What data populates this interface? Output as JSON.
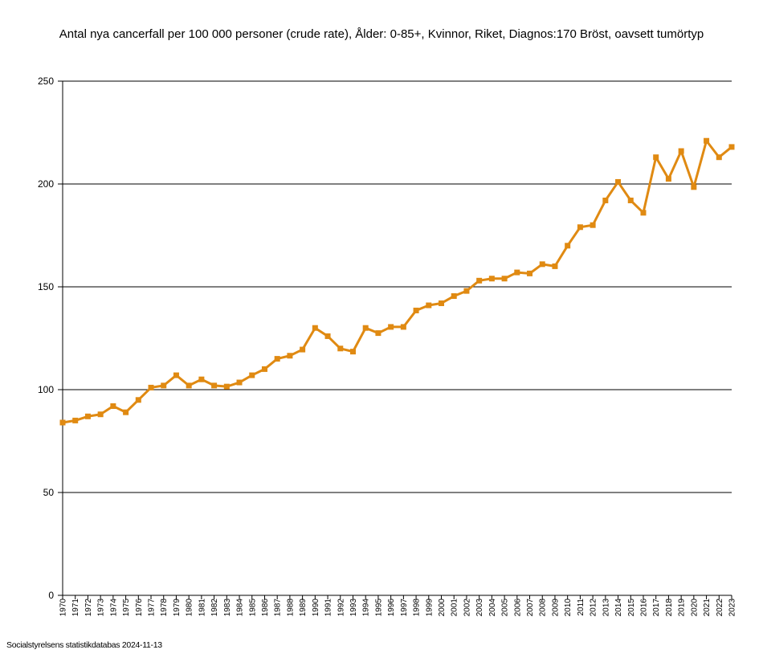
{
  "chart_data": {
    "type": "line",
    "title": "Antal nya cancerfall per 100 000 personer (crude rate), Ålder: 0-85+, Kvinnor, Riket, Diagnos:170 Bröst, oavsett tumörtyp",
    "xlabel": "",
    "ylabel": "",
    "ylim": [
      0,
      250
    ],
    "yticks": [
      0,
      50,
      100,
      150,
      200,
      250
    ],
    "grid": true,
    "legend": "none",
    "x": [
      "1970",
      "1971",
      "1972",
      "1973",
      "1974",
      "1975",
      "1976",
      "1977",
      "1978",
      "1979",
      "1980",
      "1981",
      "1982",
      "1983",
      "1984",
      "1985",
      "1986",
      "1987",
      "1988",
      "1989",
      "1990",
      "1991",
      "1992",
      "1993",
      "1994",
      "1995",
      "1996",
      "1997",
      "1998",
      "1999",
      "2000",
      "2001",
      "2002",
      "2003",
      "2004",
      "2005",
      "2006",
      "2007",
      "2008",
      "2009",
      "2010",
      "2011",
      "2012",
      "2013",
      "2014",
      "2015",
      "2016",
      "2017",
      "2018",
      "2019",
      "2020",
      "2021",
      "2022",
      "2023"
    ],
    "series": [
      {
        "color": "#e08a12",
        "values": [
          84,
          85,
          87,
          88,
          92,
          89,
          95,
          101,
          102,
          107,
          102,
          105,
          102,
          101.5,
          103.5,
          107,
          110,
          115,
          116.5,
          119.5,
          130,
          126,
          120,
          118.5,
          130,
          127.5,
          130.5,
          130.5,
          138.5,
          141,
          142,
          145.5,
          148,
          153,
          154,
          154,
          157,
          156.5,
          161,
          160,
          170,
          179,
          180,
          192,
          201,
          192,
          186,
          213,
          202.5,
          216,
          198.5,
          221,
          213,
          218
        ]
      }
    ]
  },
  "source_note": "Socialstyrelsens statistikdatabas 2024-11-13"
}
